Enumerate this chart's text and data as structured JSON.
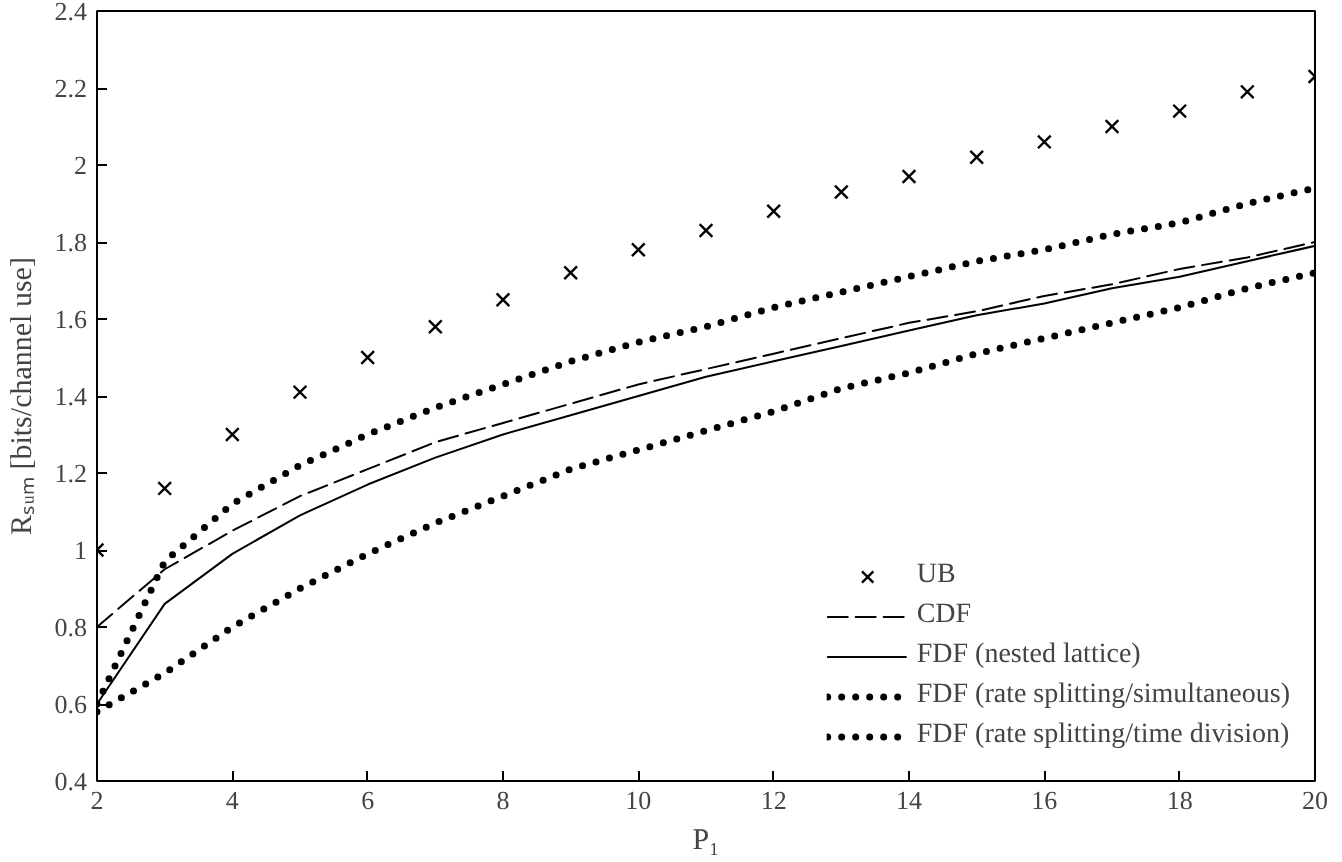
{
  "chart_data": {
    "type": "line",
    "xlabel": "P₁",
    "ylabel": "Rₛᵤₘ [bits/channel use]",
    "x": [
      2,
      3,
      4,
      5,
      6,
      7,
      8,
      9,
      10,
      11,
      12,
      13,
      14,
      15,
      16,
      17,
      18,
      19,
      20
    ],
    "xlim": [
      2,
      20
    ],
    "xticks": [
      2,
      4,
      6,
      8,
      10,
      12,
      14,
      16,
      18,
      20
    ],
    "ylim": [
      0.4,
      2.4
    ],
    "yticks": [
      {
        "value": 0.4,
        "label": "0.4"
      },
      {
        "value": 0.6,
        "label": "0.6"
      },
      {
        "value": 0.8,
        "label": "0.8"
      },
      {
        "value": 1,
        "label": "1"
      },
      {
        "value": 1.2,
        "label": "1.2"
      },
      {
        "value": 1.4,
        "label": "1.4"
      },
      {
        "value": 1.6,
        "label": "1.6"
      },
      {
        "value": 1.8,
        "label": "1.8"
      },
      {
        "value": 2,
        "label": "2"
      },
      {
        "value": 2.2,
        "label": "2.2"
      },
      {
        "value": 2.4,
        "label": "2.4"
      }
    ],
    "grid": false,
    "legend": "bottom right",
    "series": [
      {
        "name": "UB",
        "type": "scatter",
        "marker": "cross",
        "color": "#000000",
        "values": [
          1.0,
          1.16,
          1.3,
          1.41,
          1.5,
          1.58,
          1.65,
          1.72,
          1.78,
          1.83,
          1.88,
          1.93,
          1.97,
          2.02,
          2.06,
          2.1,
          2.14,
          2.19,
          2.23
        ]
      },
      {
        "name": "CDF",
        "line_style": "dashed",
        "color": "#000000",
        "values": [
          0.8,
          0.95,
          1.05,
          1.14,
          1.21,
          1.28,
          1.33,
          1.38,
          1.43,
          1.47,
          1.51,
          1.55,
          1.59,
          1.62,
          1.66,
          1.69,
          1.73,
          1.76,
          1.8
        ]
      },
      {
        "name": "FDF (nested lattice)",
        "line_style": "solid",
        "color": "#000000",
        "values": [
          0.6,
          0.86,
          0.99,
          1.09,
          1.17,
          1.24,
          1.3,
          1.35,
          1.4,
          1.45,
          1.49,
          1.53,
          1.57,
          1.61,
          1.64,
          1.68,
          1.71,
          1.75,
          1.79
        ]
      },
      {
        "name": "FDF (rate splitting/simultaneous)",
        "line_style": "dotted",
        "color": "#000000",
        "values": [
          0.58,
          0.68,
          0.8,
          0.9,
          0.99,
          1.07,
          1.14,
          1.21,
          1.26,
          1.31,
          1.36,
          1.42,
          1.46,
          1.51,
          1.55,
          1.59,
          1.63,
          1.68,
          1.72
        ]
      },
      {
        "name": "FDF (rate splitting/time division)",
        "line_style": "dotted",
        "color": "#000000",
        "values": [
          0.6,
          0.97,
          1.12,
          1.22,
          1.3,
          1.37,
          1.43,
          1.49,
          1.54,
          1.58,
          1.63,
          1.67,
          1.71,
          1.75,
          1.78,
          1.82,
          1.85,
          1.9,
          1.94
        ]
      }
    ]
  }
}
